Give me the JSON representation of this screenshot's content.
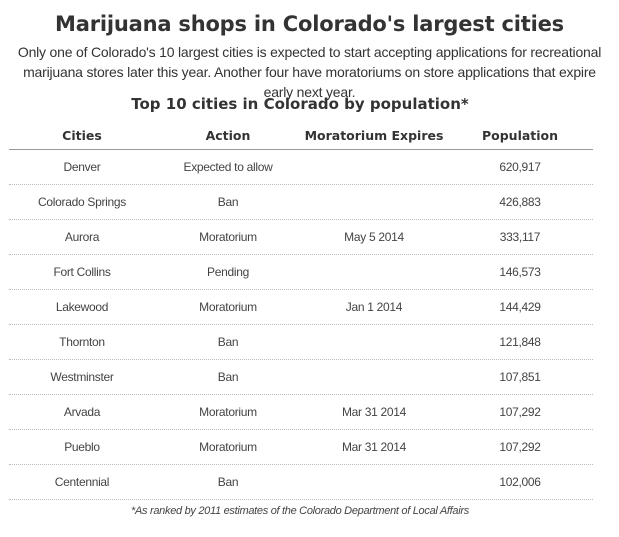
{
  "headline": "Marijuana shops in Colorado's largest cities",
  "dek": "Only one of Colorado's 10 largest cities is expected to start accepting applications for recreational marijuana stores later this year. Another four have moratoriums on store applications that expire early next year.",
  "subhead": "Top 10 cities in Colorado by population*",
  "table": {
    "columns": [
      "Cities",
      "Action",
      "Moratorium Expires",
      "Population"
    ],
    "rows": [
      [
        "Denver",
        "Expected to allow",
        "",
        "620,917"
      ],
      [
        "Colorado Springs",
        "Ban",
        "",
        "426,883"
      ],
      [
        "Aurora",
        "Moratorium",
        "May 5 2014",
        "333,117"
      ],
      [
        "Fort Collins",
        "Pending",
        "",
        "146,573"
      ],
      [
        "Lakewood",
        "Moratorium",
        "Jan 1 2014",
        "144,429"
      ],
      [
        "Thornton",
        "Ban",
        "",
        "121,848"
      ],
      [
        "Westminster",
        "Ban",
        "",
        "107,851"
      ],
      [
        "Arvada",
        "Moratorium",
        "Mar 31 2014",
        "107,292"
      ],
      [
        "Pueblo",
        "Moratorium",
        "Mar 31 2014",
        "107,292"
      ],
      [
        "Centennial",
        "Ban",
        "",
        "102,006"
      ]
    ]
  },
  "footnote": "*As ranked by 2011 estimates of the Colorado Department of Local Affairs"
}
